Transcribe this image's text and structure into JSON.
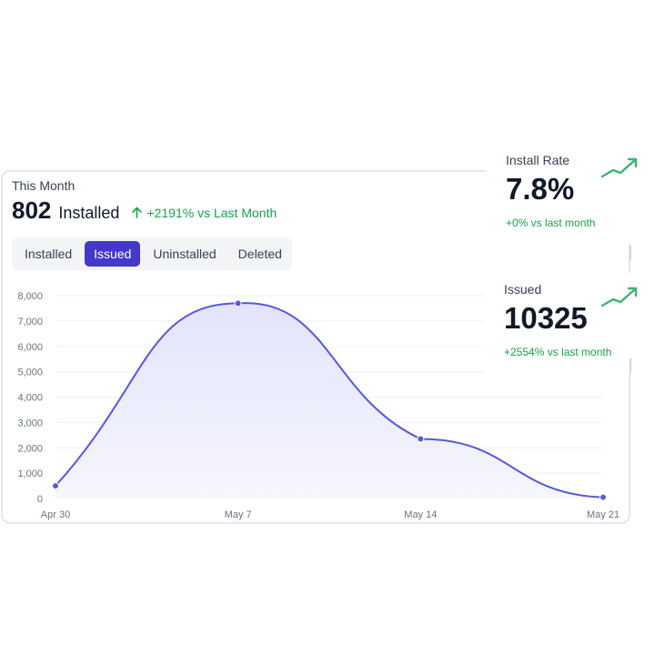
{
  "summary": {
    "period": "This Month",
    "count": "802",
    "count_label": "Installed",
    "change": "+2191% vs Last Month"
  },
  "tabs": [
    {
      "label": "Installed",
      "active": false
    },
    {
      "label": "Issued",
      "active": true
    },
    {
      "label": "Uninstalled",
      "active": false
    },
    {
      "label": "Deleted",
      "active": false
    }
  ],
  "stats": [
    {
      "label": "Install Rate",
      "value": "7.8%",
      "change": "+0% vs last month",
      "trend_icon": "trend-up-icon"
    },
    {
      "label": "Issued",
      "value": "10325",
      "change": "+2554% vs last month",
      "trend_icon": "trend-up-icon"
    }
  ],
  "colors": {
    "accent": "#4338ca",
    "line": "#5558e0",
    "positive": "#16a34a",
    "trend": "#3cb371"
  },
  "chart_data": {
    "type": "area",
    "x": [
      "Apr 30",
      "May 7",
      "May 14",
      "May 21"
    ],
    "series": [
      {
        "values": [
          500,
          7700,
          2350,
          50
        ]
      }
    ],
    "ylim": [
      0,
      8000
    ],
    "yticks": [
      "0",
      "1,000",
      "2,000",
      "3,000",
      "4,000",
      "5,000",
      "6,000",
      "7,000",
      "8,000"
    ],
    "grid": true
  }
}
